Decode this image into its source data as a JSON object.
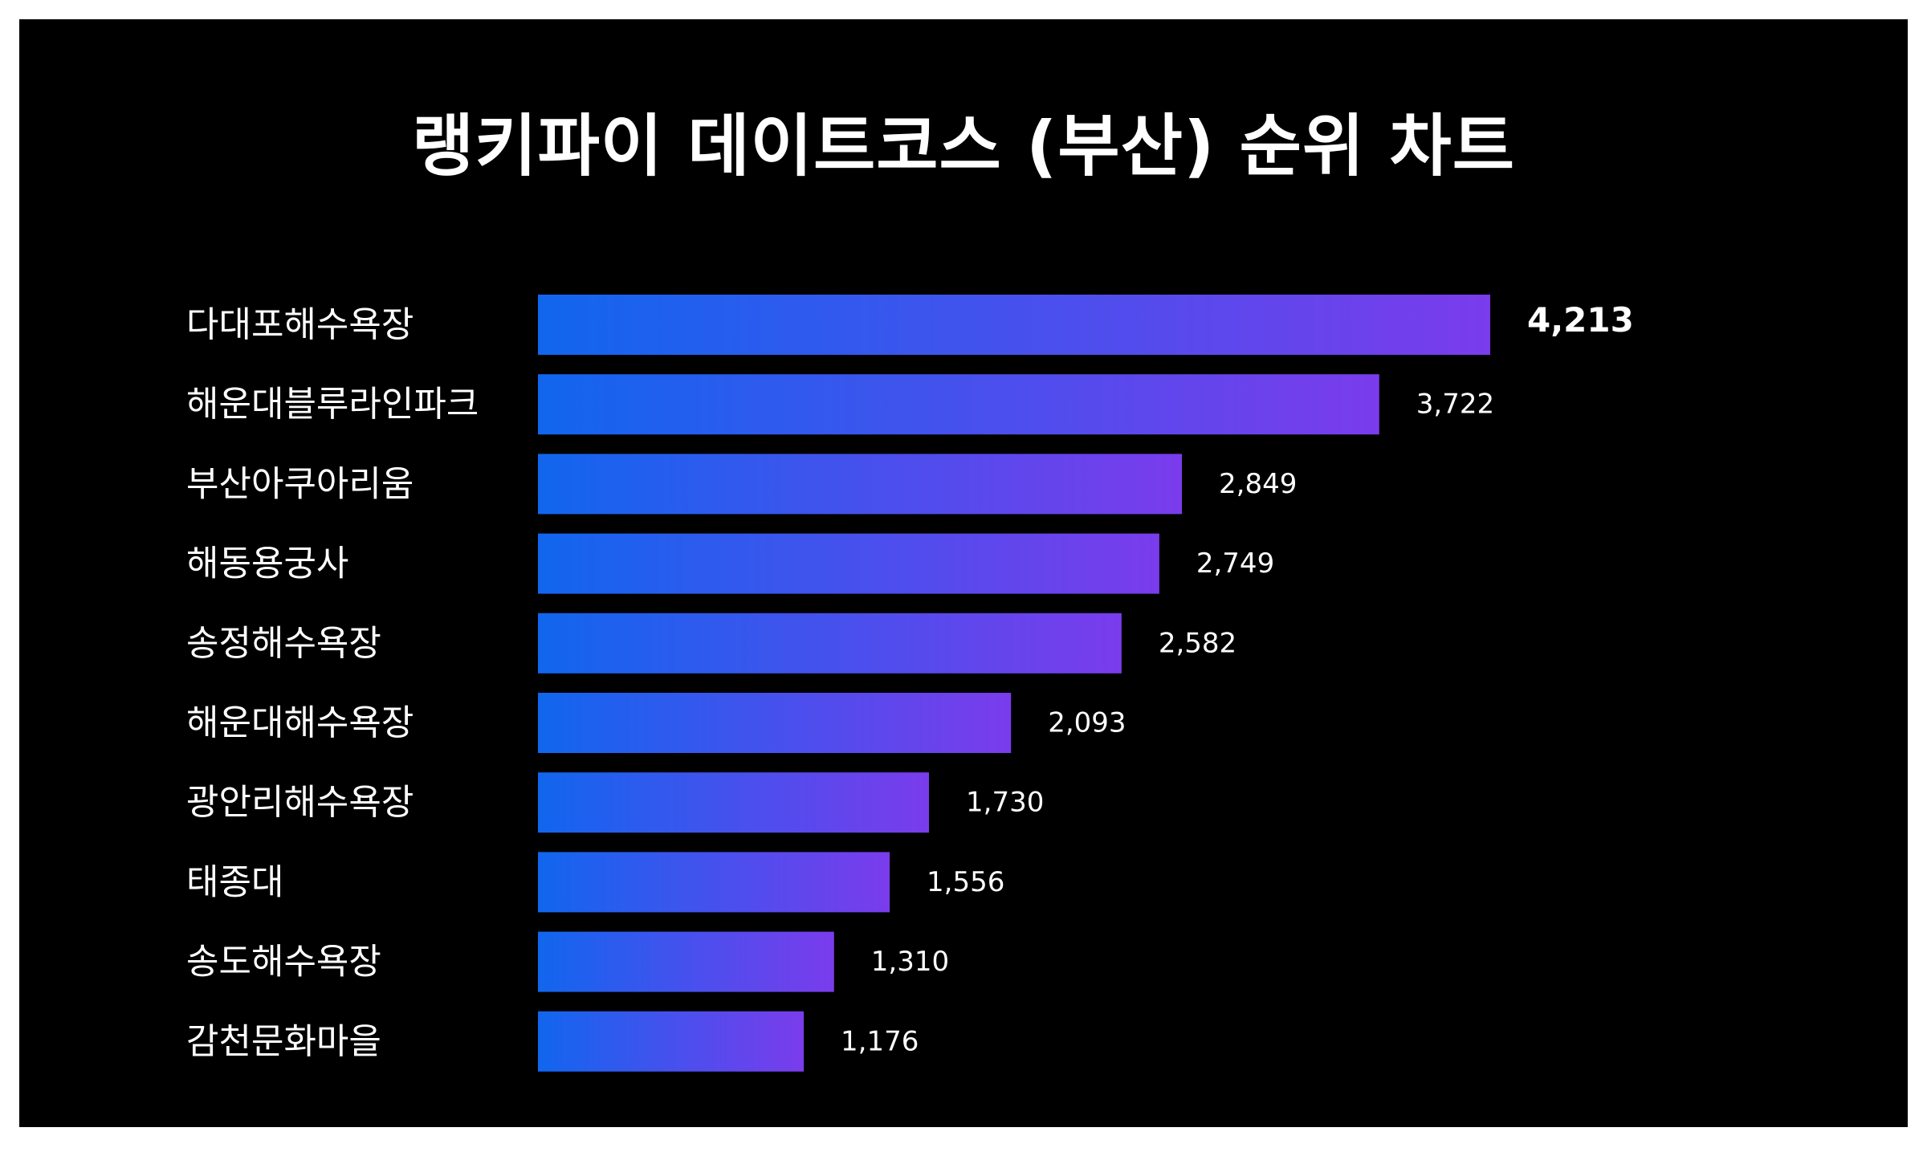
{
  "colors": {
    "background": "#000000",
    "frame": "#ffffff",
    "bar_start": "#1166ee",
    "bar_end": "#7a3cec",
    "text": "#ffffff"
  },
  "chart_data": {
    "type": "bar",
    "orientation": "horizontal",
    "title": "랭키파이 데이트코스 (부산) 순위 차트",
    "categories": [
      "다대포해수욕장",
      "해운대블루라인파크",
      "부산아쿠아리움",
      "해동용궁사",
      "송정해수욕장",
      "해운대해수욕장",
      "광안리해수욕장",
      "태종대",
      "송도해수욕장",
      "감천문화마을"
    ],
    "values": [
      4213,
      3722,
      2849,
      2749,
      2582,
      2093,
      1730,
      1556,
      1310,
      1176
    ],
    "value_labels": [
      "4,213",
      "3,722",
      "2,849",
      "2,749",
      "2,582",
      "2,093",
      "1,730",
      "1,556",
      "1,310",
      "1,176"
    ],
    "xlim": [
      0,
      4213
    ],
    "grid": false,
    "legend": "none"
  }
}
